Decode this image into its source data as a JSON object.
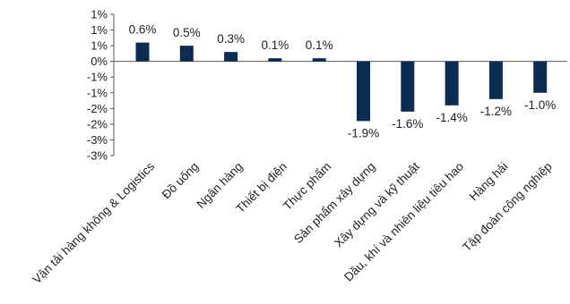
{
  "chart_data": {
    "type": "bar",
    "categories": [
      "Vận tải hàng không & Logistics",
      "Đồ uống",
      "Ngân hàng",
      "Thiết bị điện",
      "Thực phẩm",
      "Sản phẩm xây dựng",
      "Xây dựng và kỹ thuật",
      "Dầu, khí và nhiên liệu tiêu hao",
      "Hàng hải",
      "Tập đoàn công nghiệp"
    ],
    "values": [
      0.6,
      0.5,
      0.3,
      0.1,
      0.1,
      -1.9,
      -1.6,
      -1.4,
      -1.2,
      -1.0
    ],
    "data_labels": [
      "0.6%",
      "0.5%",
      "0.3%",
      "0.1%",
      "0.1%",
      "-1.9%",
      "-1.6%",
      "-1.4%",
      "-1.2%",
      "-1.0%"
    ],
    "y_ticks": [
      1.5,
      1.0,
      0.5,
      0.0,
      -0.5,
      -1.0,
      -1.5,
      -2.0,
      -2.5,
      -3.0
    ],
    "y_tick_labels": [
      "1%",
      "1%",
      "1%",
      "0%",
      "-1%",
      "-1%",
      "-2%",
      "-2%",
      "-3%",
      "-3%"
    ],
    "ylim": [
      -3.0,
      1.5
    ],
    "grid": false,
    "legend": "none",
    "bar_color": "#0b2d52"
  }
}
